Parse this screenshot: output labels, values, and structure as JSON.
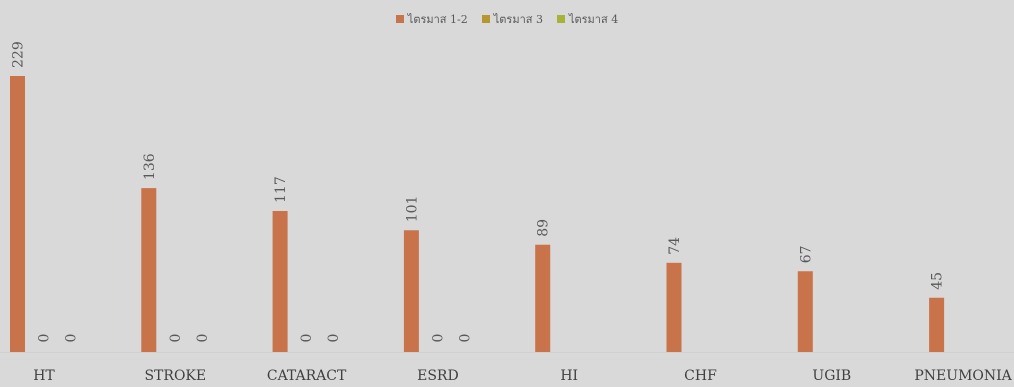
{
  "chart_data": {
    "type": "bar",
    "categories": [
      "HT",
      "STROKE",
      "CATARACT",
      "ESRD",
      "HI",
      "CHF",
      "UGIB",
      "PNEUMONIA"
    ],
    "series": [
      {
        "name": "ไตรมาส 1-2",
        "color": "#c8734a",
        "values": [
          229,
          136,
          117,
          101,
          89,
          74,
          67,
          45
        ]
      },
      {
        "name": "ไตรมาส 3",
        "color": "#b8952f",
        "values": [
          0,
          0,
          0,
          0,
          null,
          null,
          null,
          null
        ]
      },
      {
        "name": "ไตรมาส 4",
        "color": "#a5b336",
        "values": [
          0,
          0,
          0,
          0,
          null,
          null,
          null,
          null
        ]
      }
    ],
    "title": "",
    "xlabel": "",
    "ylabel": "",
    "ylim": [
      0,
      229
    ],
    "legend_position": "top-center",
    "grid": false,
    "data_labels": true
  }
}
